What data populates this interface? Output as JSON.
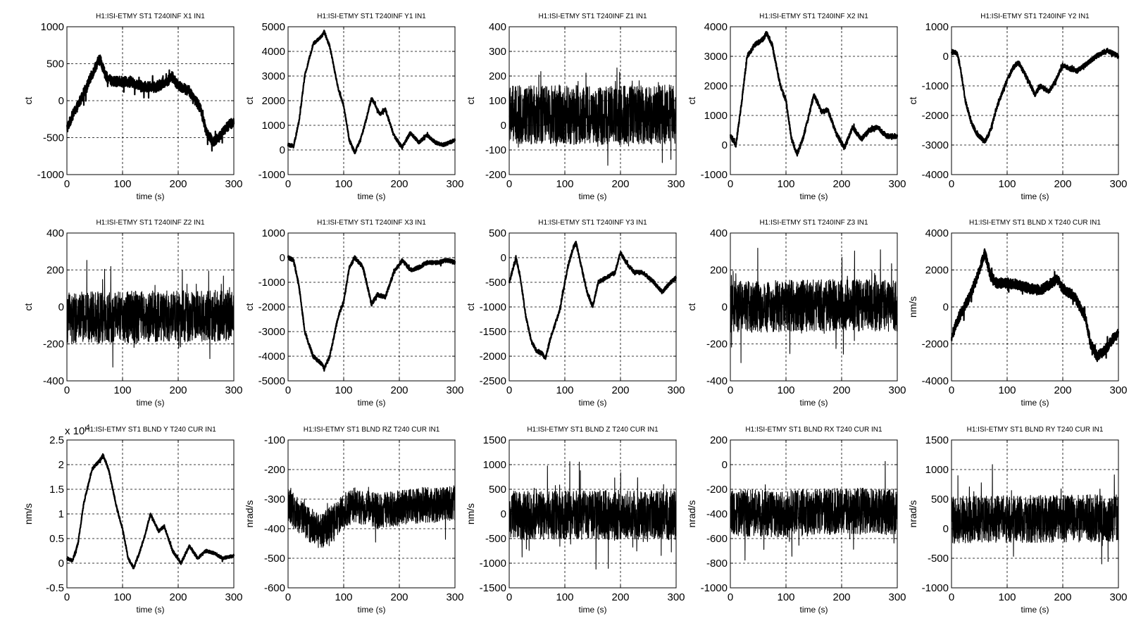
{
  "figure": {
    "background": "#ffffff",
    "trace_color": "#000000"
  },
  "chart_data": [
    {
      "type": "line",
      "title": "H1:ISI-ETMY ST1 T240INF X1 IN1",
      "xlabel": "time (s)",
      "ylabel": "ct",
      "xlim": [
        0,
        300
      ],
      "ylim": [
        -1000,
        1000
      ],
      "xticks": [
        "0",
        "100",
        "200",
        "300"
      ],
      "yticks": [
        "-1000",
        "-500",
        "0",
        "500",
        "1000"
      ],
      "grid": true,
      "series": [
        {
          "x": [
            0,
            10,
            20,
            30,
            45,
            55,
            60,
            70,
            80,
            100,
            120,
            140,
            160,
            180,
            190,
            200,
            220,
            240,
            250,
            262,
            275,
            290,
            300
          ],
          "y": [
            -380,
            -200,
            -60,
            100,
            350,
            520,
            560,
            330,
            260,
            260,
            240,
            190,
            180,
            260,
            320,
            200,
            130,
            -100,
            -400,
            -560,
            -480,
            -340,
            -280
          ],
          "noise": 70,
          "spike": 80
        }
      ]
    },
    {
      "type": "line",
      "title": "H1:ISI-ETMY ST1 T240INF Y1 IN1",
      "xlabel": "time (s)",
      "ylabel": "ct",
      "xlim": [
        0,
        300
      ],
      "ylim": [
        -1000,
        5000
      ],
      "xticks": [
        "0",
        "100",
        "200",
        "300"
      ],
      "yticks": [
        "-1000",
        "0",
        "1000",
        "2000",
        "3000",
        "4000",
        "5000"
      ],
      "grid": true,
      "series": [
        {
          "x": [
            0,
            10,
            20,
            30,
            45,
            60,
            65,
            75,
            90,
            100,
            110,
            120,
            130,
            140,
            150,
            165,
            175,
            190,
            205,
            220,
            235,
            250,
            265,
            280,
            300
          ],
          "y": [
            200,
            150,
            1200,
            3000,
            4300,
            4600,
            4800,
            4200,
            2500,
            1800,
            400,
            -100,
            400,
            1200,
            2100,
            1450,
            1650,
            600,
            100,
            700,
            300,
            600,
            300,
            200,
            400
          ],
          "noise": 70,
          "spike": 60
        }
      ]
    },
    {
      "type": "line",
      "title": "H1:ISI-ETMY ST1 T240INF Z1 IN1",
      "xlabel": "time (s)",
      "ylabel": "ct",
      "xlim": [
        0,
        300
      ],
      "ylim": [
        -200,
        400
      ],
      "xticks": [
        "0",
        "100",
        "200",
        "300"
      ],
      "yticks": [
        "-200",
        "-100",
        "0",
        "100",
        "200",
        "300",
        "400"
      ],
      "grid": true,
      "series": [
        {
          "x": [
            0,
            100,
            200,
            300
          ],
          "y": [
            40,
            45,
            40,
            45
          ],
          "noise": 120,
          "spike": 110
        }
      ]
    },
    {
      "type": "line",
      "title": "H1:ISI-ETMY ST1 T240INF X2 IN1",
      "xlabel": "time (s)",
      "ylabel": "ct",
      "xlim": [
        0,
        300
      ],
      "ylim": [
        -1000,
        4000
      ],
      "xticks": [
        "0",
        "100",
        "200",
        "300"
      ],
      "yticks": [
        "-1000",
        "0",
        "1000",
        "2000",
        "3000",
        "4000"
      ],
      "grid": true,
      "series": [
        {
          "x": [
            0,
            10,
            20,
            30,
            45,
            60,
            65,
            75,
            90,
            100,
            110,
            120,
            130,
            140,
            150,
            165,
            175,
            190,
            205,
            220,
            235,
            250,
            265,
            280,
            300
          ],
          "y": [
            300,
            0,
            1400,
            3000,
            3400,
            3600,
            3800,
            3400,
            2000,
            1500,
            200,
            -300,
            200,
            900,
            1700,
            1100,
            1200,
            400,
            -100,
            600,
            200,
            500,
            600,
            300,
            300
          ],
          "noise": 80,
          "spike": 60
        }
      ]
    },
    {
      "type": "line",
      "title": "H1:ISI-ETMY ST1 T240INF Y2 IN1",
      "xlabel": "time (s)",
      "ylabel": "ct",
      "xlim": [
        0,
        300
      ],
      "ylim": [
        -4000,
        1000
      ],
      "xticks": [
        "0",
        "100",
        "200",
        "300"
      ],
      "yticks": [
        "-4000",
        "-3000",
        "-2000",
        "-1000",
        "0",
        "1000"
      ],
      "grid": true,
      "series": [
        {
          "x": [
            0,
            10,
            15,
            25,
            35,
            45,
            55,
            60,
            70,
            80,
            100,
            110,
            120,
            135,
            150,
            160,
            175,
            185,
            200,
            210,
            225,
            240,
            260,
            280,
            290,
            300
          ],
          "y": [
            150,
            100,
            -300,
            -1500,
            -2200,
            -2600,
            -2800,
            -2900,
            -2500,
            -1800,
            -800,
            -400,
            -200,
            -700,
            -1300,
            -1000,
            -1200,
            -900,
            -300,
            -400,
            -500,
            -300,
            0,
            200,
            100,
            0
          ],
          "noise": 80,
          "spike": 60
        }
      ]
    },
    {
      "type": "line",
      "title": "H1:ISI-ETMY ST1 T240INF Z2 IN1",
      "xlabel": "time (s)",
      "ylabel": "ct",
      "xlim": [
        0,
        300
      ],
      "ylim": [
        -400,
        400
      ],
      "xticks": [
        "0",
        "100",
        "200",
        "300"
      ],
      "yticks": [
        "-400",
        "-200",
        "0",
        "200",
        "400"
      ],
      "grid": true,
      "series": [
        {
          "x": [
            0,
            100,
            200,
            300
          ],
          "y": [
            -60,
            -55,
            -50,
            -45
          ],
          "noise": 140,
          "spike": 130
        }
      ]
    },
    {
      "type": "line",
      "title": "H1:ISI-ETMY ST1 T240INF X3 IN1",
      "xlabel": "time (s)",
      "ylabel": "ct",
      "xlim": [
        0,
        300
      ],
      "ylim": [
        -5000,
        1000
      ],
      "xticks": [
        "0",
        "100",
        "200",
        "300"
      ],
      "yticks": [
        "-5000",
        "-4000",
        "-3000",
        "-2000",
        "-1000",
        "0",
        "1000"
      ],
      "grid": true,
      "series": [
        {
          "x": [
            0,
            10,
            20,
            30,
            45,
            60,
            65,
            75,
            90,
            100,
            110,
            120,
            135,
            150,
            160,
            175,
            190,
            205,
            220,
            235,
            250,
            270,
            285,
            300
          ],
          "y": [
            0,
            -100,
            -1200,
            -3000,
            -4000,
            -4300,
            -4500,
            -4000,
            -2400,
            -1800,
            -400,
            0,
            -400,
            -1900,
            -1500,
            -1600,
            -600,
            -100,
            -500,
            -400,
            -200,
            -200,
            -100,
            -200
          ],
          "noise": 80,
          "spike": 60
        }
      ]
    },
    {
      "type": "line",
      "title": "H1:ISI-ETMY ST1 T240INF Y3 IN1",
      "xlabel": "time (s)",
      "ylabel": "ct",
      "xlim": [
        0,
        300
      ],
      "ylim": [
        -2500,
        500
      ],
      "xticks": [
        "0",
        "100",
        "200",
        "300"
      ],
      "yticks": [
        "-2500",
        "-2000",
        "-1500",
        "-1000",
        "-500",
        "0",
        "500"
      ],
      "grid": true,
      "series": [
        {
          "x": [
            0,
            5,
            12,
            20,
            30,
            40,
            50,
            60,
            65,
            75,
            90,
            105,
            115,
            120,
            130,
            140,
            150,
            160,
            175,
            190,
            200,
            210,
            225,
            240,
            260,
            275,
            290,
            300
          ],
          "y": [
            -500,
            -300,
            0,
            -400,
            -1200,
            -1700,
            -1900,
            -1950,
            -2050,
            -1600,
            -1100,
            -200,
            200,
            300,
            -200,
            -700,
            -1000,
            -500,
            -400,
            -300,
            100,
            -100,
            -300,
            -300,
            -500,
            -700,
            -500,
            -400
          ],
          "noise": 40,
          "spike": 40
        }
      ]
    },
    {
      "type": "line",
      "title": "H1:ISI-ETMY ST1 T240INF Z3 IN1",
      "xlabel": "time (s)",
      "ylabel": "ct",
      "xlim": [
        0,
        300
      ],
      "ylim": [
        -400,
        400
      ],
      "xticks": [
        "0",
        "100",
        "200",
        "300"
      ],
      "yticks": [
        "-400",
        "-200",
        "0",
        "200",
        "400"
      ],
      "grid": true,
      "series": [
        {
          "x": [
            0,
            100,
            200,
            300
          ],
          "y": [
            0,
            5,
            10,
            5
          ],
          "noise": 140,
          "spike": 130
        }
      ]
    },
    {
      "type": "line",
      "title": "H1:ISI-ETMY ST1 BLND X T240 CUR IN1",
      "xlabel": "time (s)",
      "ylabel": "nm/s",
      "xlim": [
        0,
        300
      ],
      "ylim": [
        -4000,
        4000
      ],
      "xticks": [
        "0",
        "100",
        "200",
        "300"
      ],
      "yticks": [
        "-4000",
        "-2000",
        "0",
        "2000",
        "4000"
      ],
      "grid": true,
      "series": [
        {
          "x": [
            0,
            10,
            20,
            30,
            45,
            55,
            60,
            70,
            80,
            100,
            120,
            140,
            160,
            180,
            190,
            200,
            220,
            240,
            250,
            262,
            275,
            290,
            300
          ],
          "y": [
            -1600,
            -800,
            -200,
            400,
            1500,
            2500,
            2900,
            1700,
            1300,
            1300,
            1200,
            1000,
            900,
            1300,
            1500,
            1000,
            600,
            -500,
            -2000,
            -2700,
            -2400,
            -1700,
            -1400
          ],
          "noise": 280,
          "spike": 250
        }
      ]
    },
    {
      "type": "line",
      "title": "H1:ISI-ETMY ST1 BLND Y T240 CUR IN1",
      "xlabel": "time (s)",
      "ylabel": "nm/s",
      "xlim": [
        0,
        300
      ],
      "ylim": [
        -0.5,
        2.5
      ],
      "exponent_label": "x 10",
      "exponent_power": "4",
      "xticks": [
        "0",
        "100",
        "200",
        "300"
      ],
      "yticks": [
        "-0.5",
        "0",
        "0.5",
        "1",
        "1.5",
        "2",
        "2.5"
      ],
      "grid": true,
      "series": [
        {
          "x": [
            0,
            10,
            20,
            30,
            45,
            60,
            65,
            75,
            90,
            100,
            110,
            120,
            130,
            140,
            150,
            165,
            175,
            190,
            205,
            220,
            235,
            250,
            265,
            280,
            300
          ],
          "y": [
            0.1,
            0.05,
            0.4,
            1.2,
            1.9,
            2.1,
            2.2,
            1.9,
            1.1,
            0.7,
            0.1,
            -0.1,
            0.2,
            0.55,
            1.0,
            0.65,
            0.75,
            0.25,
            0.0,
            0.35,
            0.1,
            0.25,
            0.2,
            0.1,
            0.15
          ],
          "noise": 0.03,
          "spike": 0.03
        }
      ]
    },
    {
      "type": "line",
      "title": "H1:ISI-ETMY ST1 BLND RZ T240 CUR IN1",
      "xlabel": "time (s)",
      "ylabel": "nrad/s",
      "xlim": [
        0,
        300
      ],
      "ylim": [
        -600,
        -100
      ],
      "xticks": [
        "0",
        "100",
        "200",
        "300"
      ],
      "yticks": [
        "-600",
        "-500",
        "-400",
        "-300",
        "-200",
        "-100"
      ],
      "grid": true,
      "series": [
        {
          "x": [
            0,
            20,
            40,
            60,
            80,
            100,
            120,
            140,
            160,
            200,
            240,
            270,
            300
          ],
          "y": [
            -320,
            -360,
            -390,
            -410,
            -380,
            -340,
            -320,
            -330,
            -340,
            -330,
            -320,
            -320,
            -310
          ],
          "noise": 60,
          "spike": 40
        }
      ]
    },
    {
      "type": "line",
      "title": "H1:ISI-ETMY ST1 BLND Z T240 CUR IN1",
      "xlabel": "time (s)",
      "ylabel": "nm/s",
      "xlim": [
        0,
        300
      ],
      "ylim": [
        -1500,
        1500
      ],
      "xticks": [
        "0",
        "100",
        "200",
        "300"
      ],
      "yticks": [
        "-1500",
        "-1000",
        "-500",
        "0",
        "500",
        "1000",
        "1500"
      ],
      "grid": true,
      "series": [
        {
          "x": [
            0,
            100,
            200,
            300
          ],
          "y": [
            -30,
            -25,
            -20,
            -25
          ],
          "noise": 500,
          "spike": 450
        }
      ]
    },
    {
      "type": "line",
      "title": "H1:ISI-ETMY ST1 BLND RX T240 CUR IN1",
      "xlabel": "time (s)",
      "ylabel": "nrad/s",
      "xlim": [
        0,
        300
      ],
      "ylim": [
        -1000,
        200
      ],
      "xticks": [
        "0",
        "100",
        "200",
        "300"
      ],
      "yticks": [
        "-1000",
        "-800",
        "-600",
        "-400",
        "-200",
        "0",
        "200"
      ],
      "grid": true,
      "series": [
        {
          "x": [
            0,
            100,
            200,
            300
          ],
          "y": [
            -390,
            -400,
            -380,
            -380
          ],
          "noise": 190,
          "spike": 180
        }
      ]
    },
    {
      "type": "line",
      "title": "H1:ISI-ETMY ST1 BLND RY T240 CUR IN1",
      "xlabel": "time (s)",
      "ylabel": "nrad/s",
      "xlim": [
        0,
        300
      ],
      "ylim": [
        -1000,
        1500
      ],
      "xticks": [
        "0",
        "100",
        "200",
        "300"
      ],
      "yticks": [
        "-1000",
        "-500",
        "0",
        "500",
        "1000",
        "1500"
      ],
      "grid": true,
      "series": [
        {
          "x": [
            0,
            100,
            200,
            300
          ],
          "y": [
            150,
            160,
            170,
            180
          ],
          "noise": 400,
          "spike": 380
        }
      ]
    }
  ]
}
